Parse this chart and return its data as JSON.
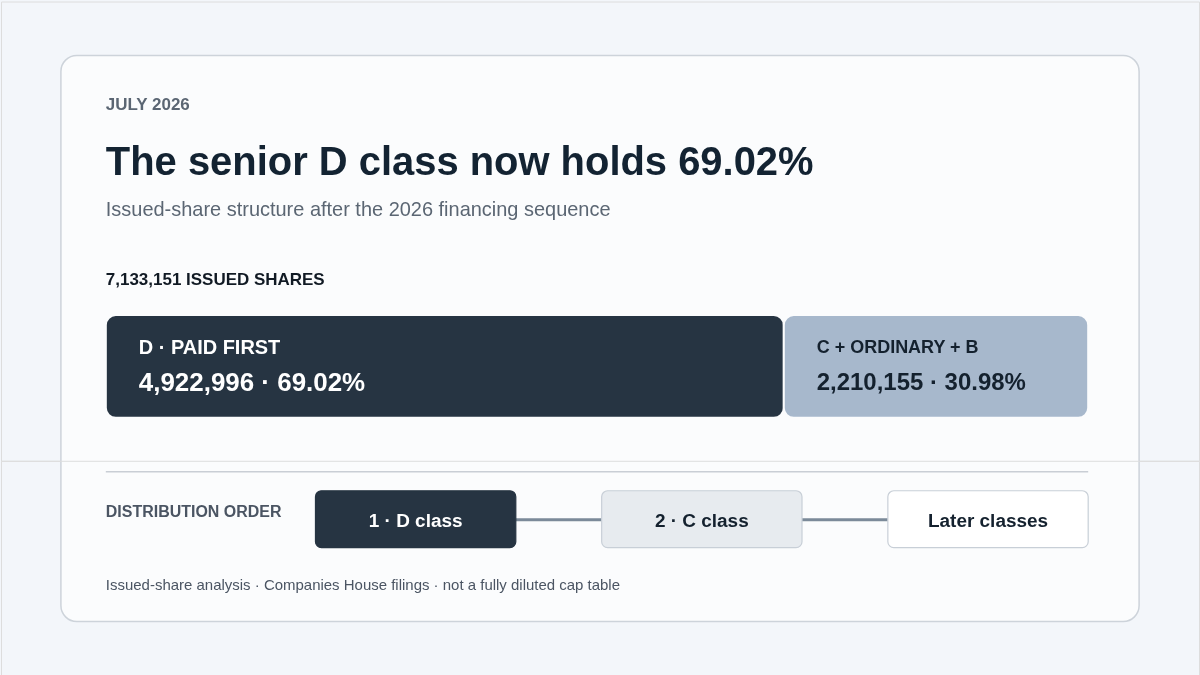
{
  "chart_data": [
    {
      "type": "bar",
      "orientation": "horizontal",
      "stacked": true,
      "annotations": [
        "JULY 2026"
      ],
      "title": "The senior D class now holds 69.02%",
      "subtitle": "Issued-share structure after the 2026 financing sequence",
      "totals": [
        "7,133,151 ISSUED SHARES"
      ],
      "categories": [
        null
      ],
      "legend": false,
      "series": [
        {
          "name": "D · PAID FIRST",
          "color": "#263442",
          "values": [
            4922996
          ],
          "value_labels": [
            "4,922,996 · 69.02%"
          ]
        },
        {
          "name": "C + ORDINARY + B",
          "color": "#a7b8cc",
          "values": [
            2210155
          ],
          "value_labels": [
            "2,210,155 · 30.98%"
          ]
        }
      ]
    },
    {
      "type": "other",
      "title": "DISTRIBUTION ORDER",
      "categories": [
        "1 · D class",
        "2 · C class",
        "Later classes"
      ],
      "colors": [
        "#263442",
        "#e7ebef",
        "#ffffff"
      ],
      "annotations": [
        "Issued-share analysis · Companies House filings · not a fully diluted cap table"
      ]
    }
  ]
}
